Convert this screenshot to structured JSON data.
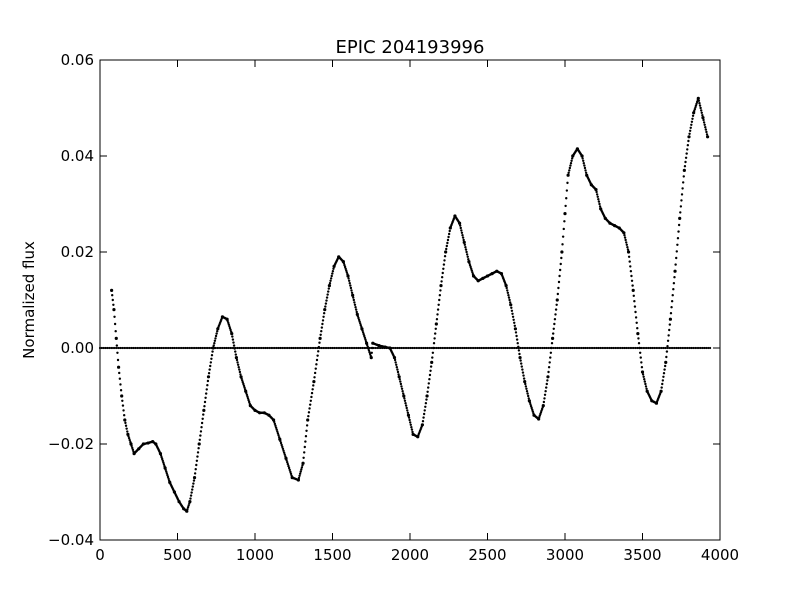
{
  "chart_data": {
    "type": "scatter",
    "title": "EPIC 204193996",
    "xlabel": "",
    "ylabel": "Normalized flux",
    "xlim": [
      0,
      4000
    ],
    "ylim": [
      -0.04,
      0.06
    ],
    "xticks": [
      0,
      500,
      1000,
      1500,
      2000,
      2500,
      3000,
      3500,
      4000
    ],
    "yticks": [
      -0.04,
      -0.02,
      0.0,
      0.02,
      0.04,
      0.06
    ],
    "xtick_labels": [
      "0",
      "500",
      "1000",
      "1500",
      "2000",
      "2500",
      "3000",
      "3500",
      "4000"
    ],
    "ytick_labels": [
      "−0.04",
      "−0.02",
      "0.00",
      "0.02",
      "0.04",
      "0.06"
    ],
    "grid": false,
    "marker_color": "#000000",
    "series": [
      {
        "values_xy": [
          [
            75,
            0.012
          ],
          [
            90,
            0.008
          ],
          [
            105,
            0.002
          ],
          [
            120,
            -0.004
          ],
          [
            140,
            -0.01
          ],
          [
            160,
            -0.015
          ],
          [
            180,
            -0.018
          ],
          [
            200,
            -0.02
          ],
          [
            220,
            -0.022
          ],
          [
            250,
            -0.021
          ],
          [
            280,
            -0.02
          ],
          [
            310,
            -0.0198
          ],
          [
            340,
            -0.0195
          ],
          [
            360,
            -0.02
          ],
          [
            390,
            -0.022
          ],
          [
            420,
            -0.025
          ],
          [
            450,
            -0.028
          ],
          [
            480,
            -0.03
          ],
          [
            510,
            -0.032
          ],
          [
            540,
            -0.0335
          ],
          [
            560,
            -0.034
          ],
          [
            580,
            -0.032
          ],
          [
            610,
            -0.027
          ],
          [
            640,
            -0.02
          ],
          [
            670,
            -0.013
          ],
          [
            700,
            -0.006
          ],
          [
            730,
            0.0
          ],
          [
            760,
            0.004
          ],
          [
            790,
            0.0065
          ],
          [
            820,
            0.006
          ],
          [
            850,
            0.003
          ],
          [
            880,
            -0.002
          ],
          [
            910,
            -0.006
          ],
          [
            940,
            -0.009
          ],
          [
            970,
            -0.012
          ],
          [
            1000,
            -0.013
          ],
          [
            1030,
            -0.0135
          ],
          [
            1060,
            -0.0135
          ],
          [
            1090,
            -0.014
          ],
          [
            1120,
            -0.015
          ],
          [
            1160,
            -0.019
          ],
          [
            1200,
            -0.023
          ],
          [
            1240,
            -0.027
          ],
          [
            1280,
            -0.0275
          ],
          [
            1310,
            -0.024
          ],
          [
            1340,
            -0.015
          ],
          [
            1380,
            -0.007
          ],
          [
            1420,
            0.002
          ],
          [
            1450,
            0.008
          ],
          [
            1480,
            0.013
          ],
          [
            1510,
            0.017
          ],
          [
            1540,
            0.019
          ],
          [
            1570,
            0.018
          ],
          [
            1600,
            0.015
          ],
          [
            1630,
            0.011
          ],
          [
            1660,
            0.007
          ],
          [
            1690,
            0.004
          ],
          [
            1720,
            0.001
          ],
          [
            1750,
            -0.002
          ],
          [
            1760,
            0.001
          ],
          [
            1800,
            0.0005
          ],
          [
            1840,
            0.0002
          ],
          [
            1870,
            0.0
          ],
          [
            1900,
            -0.002
          ],
          [
            1930,
            -0.006
          ],
          [
            1960,
            -0.01
          ],
          [
            1990,
            -0.014
          ],
          [
            2020,
            -0.018
          ],
          [
            2050,
            -0.0185
          ],
          [
            2080,
            -0.016
          ],
          [
            2110,
            -0.01
          ],
          [
            2140,
            -0.003
          ],
          [
            2170,
            0.005
          ],
          [
            2200,
            0.013
          ],
          [
            2230,
            0.02
          ],
          [
            2260,
            0.025
          ],
          [
            2290,
            0.0275
          ],
          [
            2320,
            0.026
          ],
          [
            2350,
            0.022
          ],
          [
            2380,
            0.018
          ],
          [
            2410,
            0.015
          ],
          [
            2440,
            0.014
          ],
          [
            2470,
            0.0145
          ],
          [
            2500,
            0.015
          ],
          [
            2530,
            0.0155
          ],
          [
            2560,
            0.016
          ],
          [
            2590,
            0.0155
          ],
          [
            2620,
            0.013
          ],
          [
            2650,
            0.009
          ],
          [
            2680,
            0.004
          ],
          [
            2710,
            -0.002
          ],
          [
            2740,
            -0.007
          ],
          [
            2770,
            -0.011
          ],
          [
            2800,
            -0.014
          ],
          [
            2830,
            -0.0148
          ],
          [
            2860,
            -0.012
          ],
          [
            2890,
            -0.006
          ],
          [
            2920,
            0.002
          ],
          [
            2950,
            0.01
          ],
          [
            2980,
            0.02
          ],
          [
            3000,
            0.028
          ],
          [
            3020,
            0.036
          ],
          [
            3050,
            0.04
          ],
          [
            3080,
            0.0415
          ],
          [
            3110,
            0.04
          ],
          [
            3140,
            0.036
          ],
          [
            3170,
            0.034
          ],
          [
            3200,
            0.033
          ],
          [
            3230,
            0.029
          ],
          [
            3260,
            0.027
          ],
          [
            3290,
            0.026
          ],
          [
            3320,
            0.0255
          ],
          [
            3350,
            0.025
          ],
          [
            3380,
            0.024
          ],
          [
            3410,
            0.02
          ],
          [
            3440,
            0.012
          ],
          [
            3470,
            0.003
          ],
          [
            3500,
            -0.005
          ],
          [
            3530,
            -0.009
          ],
          [
            3560,
            -0.011
          ],
          [
            3590,
            -0.0115
          ],
          [
            3620,
            -0.009
          ],
          [
            3650,
            -0.003
          ],
          [
            3680,
            0.006
          ],
          [
            3710,
            0.016
          ],
          [
            3740,
            0.027
          ],
          [
            3770,
            0.037
          ],
          [
            3800,
            0.044
          ],
          [
            3830,
            0.049
          ],
          [
            3860,
            0.052
          ],
          [
            3890,
            0.048
          ],
          [
            3920,
            0.044
          ]
        ]
      }
    ]
  }
}
